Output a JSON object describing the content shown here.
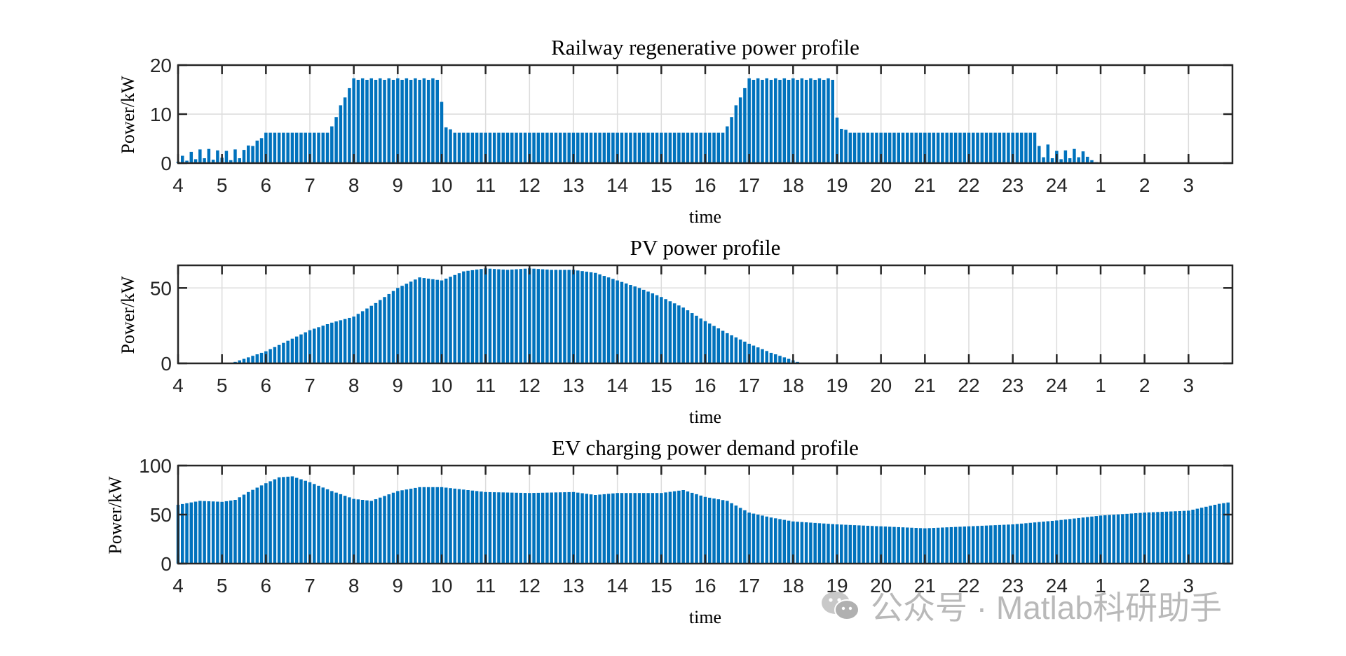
{
  "colors": {
    "bar": "#0072BD",
    "axis": "#262626",
    "grid": "#dcdcdc",
    "watermark": "#b9b9b9"
  },
  "watermark": {
    "icon": "wechat-icon",
    "text": "公众号 · Matlab科研助手"
  },
  "chart_data": [
    {
      "type": "bar",
      "title": "Railway regenerative power profile",
      "xlabel": "time",
      "ylabel": "Power/kW",
      "xlim": [
        0,
        24
      ],
      "ylim": [
        0,
        20
      ],
      "yticks": [
        0,
        10,
        20
      ],
      "xtick_positions": [
        0,
        1,
        2,
        3,
        4,
        5,
        6,
        7,
        8,
        9,
        10,
        11,
        12,
        13,
        14,
        15,
        16,
        17,
        18,
        19,
        20,
        21,
        22,
        23
      ],
      "xtick_labels": [
        "4",
        "5",
        "6",
        "7",
        "8",
        "9",
        "10",
        "11",
        "12",
        "13",
        "14",
        "15",
        "16",
        "17",
        "18",
        "19",
        "20",
        "21",
        "22",
        "23",
        "24",
        "1",
        "2",
        "3"
      ],
      "grid": true,
      "bar_interval_hours": 0.1,
      "segments": [
        {
          "start": 0.0,
          "end": 1.6,
          "values": [
            0.3,
            1.5,
            0.5,
            2.3,
            0.8,
            2.8,
            1.0,
            2.9,
            0.7,
            2.6,
            1.1,
            2.5,
            0.6,
            2.8,
            1.0,
            2.7
          ]
        },
        {
          "start": 1.6,
          "end": 2.0,
          "values": [
            3.6,
            3.5,
            4.6,
            5.1
          ]
        },
        {
          "start": 2.0,
          "end": 3.5,
          "level": 6.2
        },
        {
          "start": 3.5,
          "end": 4.0,
          "values": [
            7.5,
            9.4,
            11.8,
            13.4,
            15.3
          ]
        },
        {
          "start": 4.0,
          "end": 6.0,
          "level": 17.3,
          "alt": 17.0
        },
        {
          "start": 6.0,
          "end": 6.4,
          "values": [
            12.5,
            7.3,
            6.9,
            6.2
          ]
        },
        {
          "start": 6.4,
          "end": 12.5,
          "level": 6.2
        },
        {
          "start": 12.5,
          "end": 13.0,
          "values": [
            7.5,
            9.4,
            11.8,
            13.4,
            15.3
          ]
        },
        {
          "start": 13.0,
          "end": 15.0,
          "level": 17.3,
          "alt": 17.0
        },
        {
          "start": 15.0,
          "end": 15.4,
          "values": [
            9.3,
            7.0,
            6.8,
            6.2
          ]
        },
        {
          "start": 15.4,
          "end": 19.6,
          "level": 6.2
        },
        {
          "start": 19.6,
          "end": 21.0,
          "values": [
            3.5,
            1.2,
            3.8,
            1.0,
            2.5,
            0.8,
            2.6,
            1.0,
            2.9,
            1.2,
            2.4,
            1.3,
            0.6,
            0.2
          ]
        }
      ]
    },
    {
      "type": "bar",
      "title": "PV power profile",
      "xlabel": "time",
      "ylabel": "Power/kW",
      "xlim": [
        0,
        24
      ],
      "ylim": [
        0,
        65
      ],
      "yticks": [
        0,
        50
      ],
      "xtick_positions": [
        0,
        1,
        2,
        3,
        4,
        5,
        6,
        7,
        8,
        9,
        10,
        11,
        12,
        13,
        14,
        15,
        16,
        17,
        18,
        19,
        20,
        21,
        22,
        23
      ],
      "xtick_labels": [
        "4",
        "5",
        "6",
        "7",
        "8",
        "9",
        "10",
        "11",
        "12",
        "13",
        "14",
        "15",
        "16",
        "17",
        "18",
        "19",
        "20",
        "21",
        "22",
        "23",
        "24",
        "1",
        "2",
        "3"
      ],
      "grid": true,
      "bar_interval_hours": 0.1,
      "keypoints_x": [
        1.2,
        1.5,
        2.0,
        2.5,
        3.0,
        3.5,
        4.0,
        4.5,
        5.0,
        5.5,
        6.0,
        6.5,
        7.0,
        7.5,
        8.0,
        8.5,
        9.0,
        9.5,
        10.0,
        10.5,
        11.0,
        11.5,
        12.0,
        12.5,
        13.0,
        13.5,
        14.0,
        14.2
      ],
      "keypoints_y": [
        0,
        3,
        8,
        15,
        22,
        27,
        31,
        40,
        50,
        57,
        55,
        61,
        63,
        62,
        63,
        62,
        62,
        60,
        55,
        50,
        44,
        37,
        28,
        20,
        13,
        7,
        2,
        0
      ]
    },
    {
      "type": "bar",
      "title": "EV charging power demand profile",
      "xlabel": "time",
      "ylabel": "Power/kW",
      "xlim": [
        0,
        24
      ],
      "ylim": [
        0,
        100
      ],
      "yticks": [
        0,
        50,
        100
      ],
      "xtick_positions": [
        0,
        1,
        2,
        3,
        4,
        5,
        6,
        7,
        8,
        9,
        10,
        11,
        12,
        13,
        14,
        15,
        16,
        17,
        18,
        19,
        20,
        21,
        22,
        23
      ],
      "xtick_labels": [
        "4",
        "5",
        "6",
        "7",
        "8",
        "9",
        "10",
        "11",
        "12",
        "13",
        "14",
        "15",
        "16",
        "17",
        "18",
        "19",
        "20",
        "21",
        "22",
        "23",
        "24",
        "1",
        "2",
        "3"
      ],
      "grid": true,
      "bar_interval_hours": 0.1,
      "keypoints_x": [
        0,
        0.5,
        1.0,
        1.3,
        1.6,
        2.0,
        2.3,
        2.6,
        3.0,
        3.5,
        4.0,
        4.4,
        5.0,
        5.5,
        6.0,
        7.0,
        8.0,
        9.0,
        9.5,
        10.0,
        11.0,
        11.5,
        12.0,
        12.5,
        13.0,
        13.5,
        14.0,
        15.0,
        16.0,
        17.0,
        18.0,
        19.0,
        20.0,
        21.0,
        22.0,
        23.0,
        23.7,
        24.0
      ],
      "keypoints_y": [
        60,
        64,
        63,
        65,
        73,
        82,
        88,
        89,
        83,
        74,
        66,
        64,
        74,
        78,
        78,
        73,
        72,
        73,
        70,
        72,
        72,
        75,
        68,
        64,
        52,
        47,
        43,
        40,
        38,
        36,
        38,
        40,
        44,
        49,
        52,
        54,
        61,
        63
      ]
    }
  ]
}
